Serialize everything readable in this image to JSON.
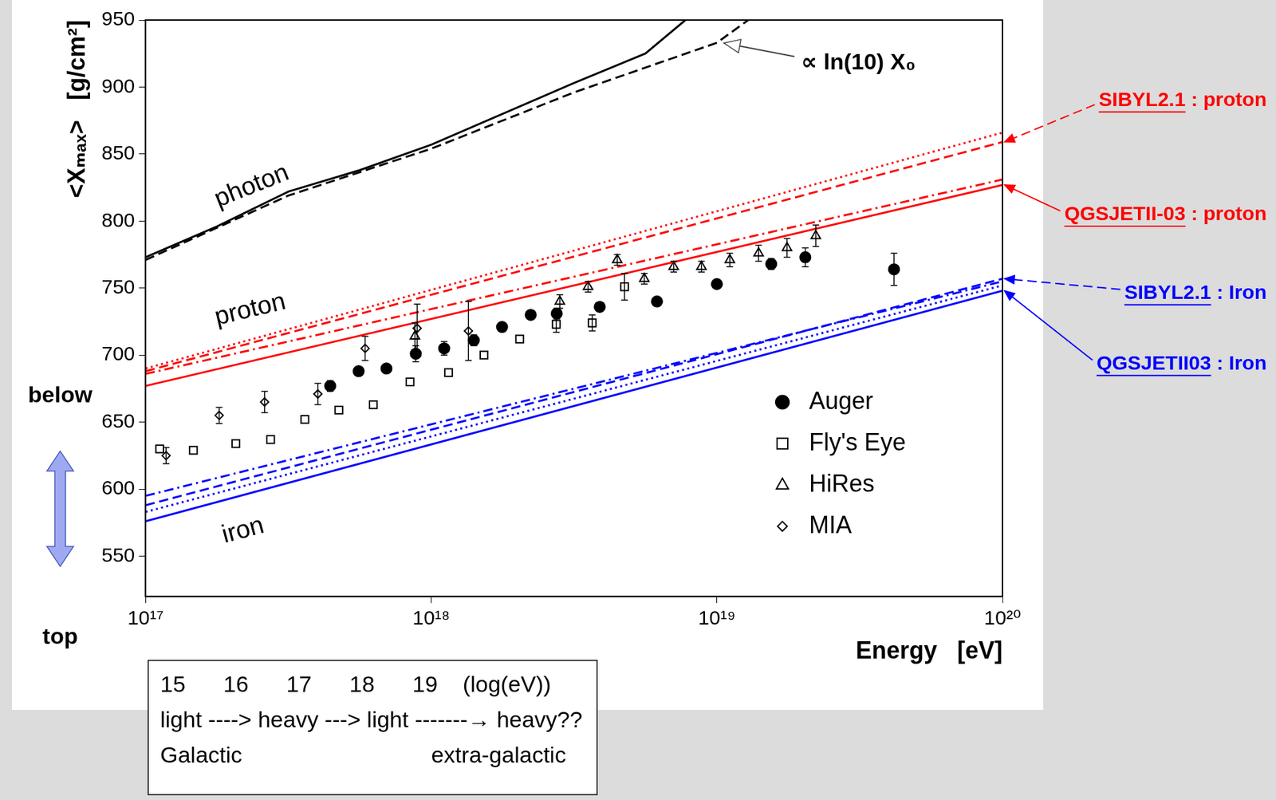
{
  "chart_data": {
    "type": "scatter",
    "xlabel": "Energy   [eV]",
    "ylabel": "<Xₘₐₓ>   [g/cm²]",
    "log": "x",
    "grid": false,
    "legend": "lower right",
    "xlim": [
      1e+17,
      1e+20
    ],
    "xticks": [
      {
        "value": 1e+17,
        "label": "10¹⁷"
      },
      {
        "value": 1e+18,
        "label": "10¹⁸"
      },
      {
        "value": 1e+19,
        "label": "10¹⁹"
      },
      {
        "value": 1e+20,
        "label": "10²⁰"
      }
    ],
    "ylim": [
      520,
      950
    ],
    "yticks": [
      550,
      600,
      650,
      700,
      750,
      800,
      850,
      900,
      950
    ],
    "annotations": [
      "photon",
      "proton",
      "iron",
      "∝ ln(10) X₀",
      "below",
      "top",
      "15      16      17      18      19    (log(eV))",
      "light ----> heavy ---> light -------→ heavy??",
      "Galactic                              extra-galactic"
    ],
    "series": [
      {
        "type": "line",
        "color": "#000000",
        "line_style": "solid",
        "x": [
          1e+17,
          1.778e+17,
          3.162e+17,
          5.623e+17,
          1e+18,
          1.778e+18,
          3.162e+18,
          5.623e+18,
          7.762e+18
        ],
        "values": [
          773,
          796,
          822,
          838,
          857,
          880,
          903,
          925,
          950
        ]
      },
      {
        "type": "line",
        "color": "#000000",
        "line_style": "dashed",
        "x": [
          1e+17,
          3.162e+17,
          1e+18,
          3.162e+18,
          1e+19,
          1.288e+19
        ],
        "values": [
          771,
          819,
          854,
          896,
          933,
          950
        ]
      },
      {
        "name": "SIBYL2.1 : proton",
        "type": "line",
        "color": "#ff0000",
        "line_style": "dashed",
        "x": [
          1e+17,
          1e+20
        ],
        "values": [
          688,
          859
        ]
      },
      {
        "name": "QGSJETII-03 : proton",
        "type": "line",
        "color": "#ff0000",
        "line_style": "solid",
        "x": [
          1e+17,
          1e+20
        ],
        "values": [
          677,
          827
        ]
      },
      {
        "type": "line",
        "color": "#ff0000",
        "line_style": "dotted",
        "x": [
          1e+17,
          1e+20
        ],
        "values": [
          690,
          866
        ]
      },
      {
        "type": "line",
        "color": "#ff0000",
        "line_style": "dashdot",
        "x": [
          1e+17,
          1e+20
        ],
        "values": [
          686,
          831
        ]
      },
      {
        "name": "SIBYL2.1 : Iron",
        "type": "line",
        "color": "#0000ff",
        "line_style": "dashed",
        "x": [
          1e+17,
          1e+20
        ],
        "values": [
          588,
          757
        ]
      },
      {
        "name": "QGSJETII03 : Iron",
        "type": "line",
        "color": "#0000ff",
        "line_style": "solid",
        "x": [
          1e+17,
          1e+20
        ],
        "values": [
          576,
          748
        ]
      },
      {
        "type": "line",
        "color": "#0000ff",
        "line_style": "dotted",
        "x": [
          1e+17,
          1e+20
        ],
        "values": [
          583,
          752
        ]
      },
      {
        "type": "line",
        "color": "#0000ff",
        "line_style": "dashdot",
        "x": [
          1e+17,
          1e+20
        ],
        "values": [
          595,
          755
        ]
      },
      {
        "name": "Auger",
        "type": "scatter",
        "marker": "filled_circle",
        "color": "#000000",
        "x": [
          4.43e+17,
          5.57e+17,
          6.97e+17,
          8.83e+17,
          1.11e+18,
          1.41e+18,
          1.77e+18,
          2.23e+18,
          2.75e+18,
          3.89e+18,
          6.17e+18,
          1e+19,
          1.55e+19,
          2.04e+19,
          4.17e+19
        ],
        "values": [
          677,
          688,
          690,
          701,
          705,
          711,
          721,
          730,
          731,
          736,
          740,
          753,
          768,
          773,
          764
        ],
        "errors": [
          4,
          null,
          null,
          6,
          5,
          4,
          3,
          3,
          4,
          null,
          3,
          3,
          4,
          7,
          12
        ]
      },
      {
        "name": "Fly's Eye",
        "type": "scatter",
        "marker": "open_square",
        "color": "#000000",
        "x": [
          1.12e+17,
          1.47e+17,
          2.07e+17,
          2.74e+17,
          3.61e+17,
          4.75e+17,
          6.27e+17,
          8.43e+17,
          1.15e+18,
          1.53e+18,
          2.04e+18,
          2.74e+18,
          3.66e+18,
          4.75e+18
        ],
        "values": [
          630,
          629,
          634,
          637,
          652,
          659,
          663,
          680,
          687,
          700,
          712,
          723,
          724,
          751
        ],
        "errors": [
          null,
          null,
          null,
          null,
          null,
          null,
          null,
          null,
          null,
          null,
          null,
          6,
          6,
          10
        ]
      },
      {
        "name": "HiRes",
        "type": "scatter",
        "marker": "open_triangle",
        "color": "#000000",
        "x": [
          8.77e+17,
          2.82e+18,
          3.54e+18,
          4.48e+18,
          5.57e+18,
          7.06e+18,
          8.83e+18,
          1.11e+19,
          1.4e+19,
          1.76e+19,
          2.22e+19
        ],
        "values": [
          714,
          740,
          751,
          771,
          757,
          766,
          766,
          771,
          776,
          780,
          789
        ],
        "errors": [
          10,
          5,
          4,
          4,
          4,
          4,
          4,
          5,
          6,
          7,
          8
        ]
      },
      {
        "name": "MIA",
        "type": "scatter",
        "marker": "open_diamond",
        "color": "#000000",
        "x": [
          1.18e+17,
          1.81e+17,
          2.61e+17,
          4.01e+17,
          5.87e+17,
          8.93e+17,
          1.35e+18
        ],
        "values": [
          625,
          655,
          665,
          671,
          705,
          720,
          718
        ],
        "errors": [
          6,
          6,
          8,
          8,
          9,
          18,
          22
        ]
      }
    ]
  }
}
